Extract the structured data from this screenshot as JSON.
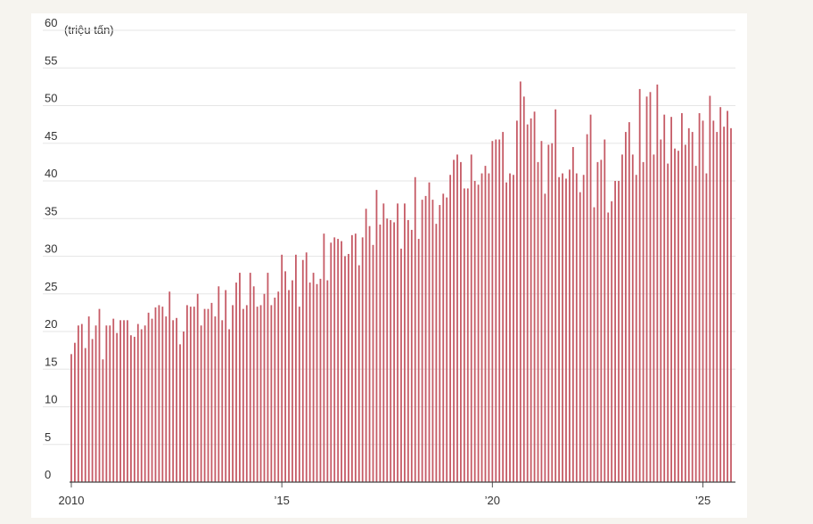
{
  "chart_data": {
    "type": "bar",
    "unit_label": "(triệu tấn)",
    "color": "#c65b66",
    "grid": true,
    "ylim": [
      0,
      60
    ],
    "yticks": [
      0,
      5,
      10,
      15,
      20,
      25,
      30,
      35,
      40,
      45,
      50,
      55,
      60
    ],
    "categories": [
      "2010",
      null,
      null,
      null,
      null,
      null,
      null,
      null,
      null,
      null,
      null,
      null,
      null,
      null,
      null,
      null,
      null,
      null,
      null,
      null,
      null,
      null,
      null,
      null,
      null,
      null,
      null,
      null,
      null,
      null,
      null,
      null,
      null,
      null,
      null,
      null,
      null,
      null,
      null,
      null,
      null,
      null,
      null,
      null,
      null,
      null,
      null,
      null,
      null,
      null,
      null,
      null,
      null,
      null,
      null,
      null,
      null,
      null,
      null,
      null,
      "’15",
      null,
      null,
      null,
      null,
      null,
      null,
      null,
      null,
      null,
      null,
      null,
      null,
      null,
      null,
      null,
      null,
      null,
      null,
      null,
      null,
      null,
      null,
      null,
      null,
      null,
      null,
      null,
      null,
      null,
      null,
      null,
      null,
      null,
      null,
      null,
      null,
      null,
      null,
      null,
      null,
      null,
      null,
      null,
      null,
      null,
      null,
      null,
      null,
      null,
      null,
      null,
      null,
      null,
      null,
      null,
      null,
      null,
      null,
      null,
      "’20",
      null,
      null,
      null,
      null,
      null,
      null,
      null,
      null,
      null,
      null,
      null,
      null,
      null,
      null,
      null,
      null,
      null,
      null,
      null,
      null,
      null,
      null,
      null,
      null,
      null,
      null,
      null,
      null,
      null,
      null,
      null,
      null,
      null,
      null,
      null,
      null,
      null,
      null,
      null,
      null,
      null,
      null,
      null,
      null,
      null,
      null,
      null,
      null,
      null,
      null,
      null,
      null,
      null,
      null,
      null,
      null,
      null,
      null,
      null,
      "’25",
      null,
      null,
      null,
      null,
      null,
      null,
      null,
      null
    ],
    "values": [
      17,
      18.5,
      20.8,
      21,
      17.8,
      22,
      19,
      20.8,
      23,
      16.3,
      20.8,
      20.8,
      21.7,
      19.8,
      21.5,
      21.5,
      21.5,
      19.5,
      19.3,
      21,
      20.3,
      20.8,
      22.5,
      21.7,
      23.2,
      23.5,
      23.3,
      22,
      25.3,
      21.5,
      21.8,
      18.3,
      20,
      23.5,
      23.3,
      23.3,
      25,
      20.8,
      23,
      23,
      23.8,
      22,
      26,
      21.5,
      25.5,
      20.3,
      23.5,
      26.5,
      27.8,
      23,
      23.5,
      27.8,
      26,
      23.3,
      23.5,
      25,
      27.8,
      23.5,
      24.5,
      25.3,
      30.2,
      28,
      25.5,
      26.8,
      30.2,
      23.3,
      29.5,
      30.5,
      26.5,
      27.8,
      26.3,
      27,
      33,
      26.8,
      31.8,
      32.5,
      32.3,
      32,
      30,
      30.3,
      32.8,
      33,
      28.8,
      32.5,
      36.3,
      34,
      31.5,
      38.8,
      34.2,
      37,
      35,
      34.8,
      34.5,
      37,
      31,
      37,
      34.8,
      33.5,
      40.5,
      32.3,
      37.5,
      38,
      39.8,
      37.5,
      34.3,
      36.8,
      38.3,
      37.8,
      40.8,
      42.8,
      43.5,
      42.5,
      39,
      39,
      43.5,
      40,
      39.5,
      41,
      42,
      41,
      45.3,
      45.5,
      45.5,
      46.5,
      39.8,
      41,
      40.8,
      48,
      53.2,
      51.2,
      47.5,
      48.3,
      49.2,
      42.5,
      45.3,
      38.3,
      44.8,
      45,
      49.5,
      40.5,
      41,
      40.3,
      41.5,
      44.5,
      41,
      38.5,
      40.8,
      46.2,
      48.8,
      36.5,
      42.5,
      42.8,
      45.5,
      35.8,
      37.3,
      40,
      40,
      43.5,
      46.5,
      47.8,
      43.5,
      40.8,
      52.2,
      42.5,
      51.2,
      51.8,
      43.5,
      52.8,
      45.5,
      48.8,
      42.3,
      48.5,
      44.3,
      44,
      49,
      44.8,
      47,
      46.5,
      42,
      49,
      48,
      41,
      51.3,
      48,
      46.5,
      49.8,
      47.2,
      49.3,
      47
    ]
  }
}
